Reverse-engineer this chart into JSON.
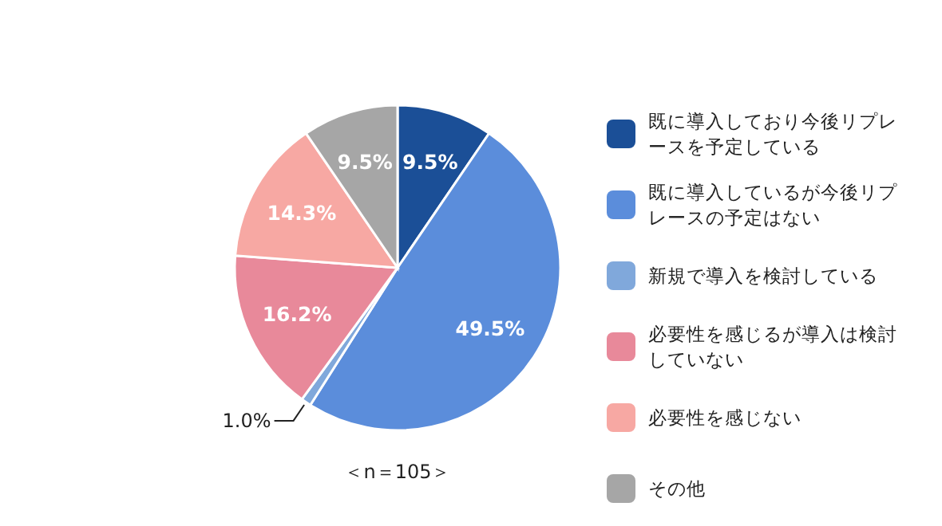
{
  "chart_data": {
    "type": "pie",
    "categories": [
      "既に導入しており今後リプレースを予定している",
      "既に導入しているが今後リプレースの予定はない",
      "新規で導入を検討している",
      "必要性を感じるが導入は検討していない",
      "必要性を感じない",
      "その他"
    ],
    "values": [
      9.5,
      49.5,
      1.0,
      16.2,
      14.3,
      9.5
    ],
    "colors": [
      "#1b4f97",
      "#5b8ddb",
      "#80a8db",
      "#e8899a",
      "#f7a8a3",
      "#a6a6a6"
    ],
    "value_labels": [
      "9.5%",
      "49.5%",
      "1.0%",
      "16.2%",
      "14.3%",
      "9.5%"
    ],
    "legend": "right",
    "annotations": [
      "＜n＝105＞"
    ]
  }
}
